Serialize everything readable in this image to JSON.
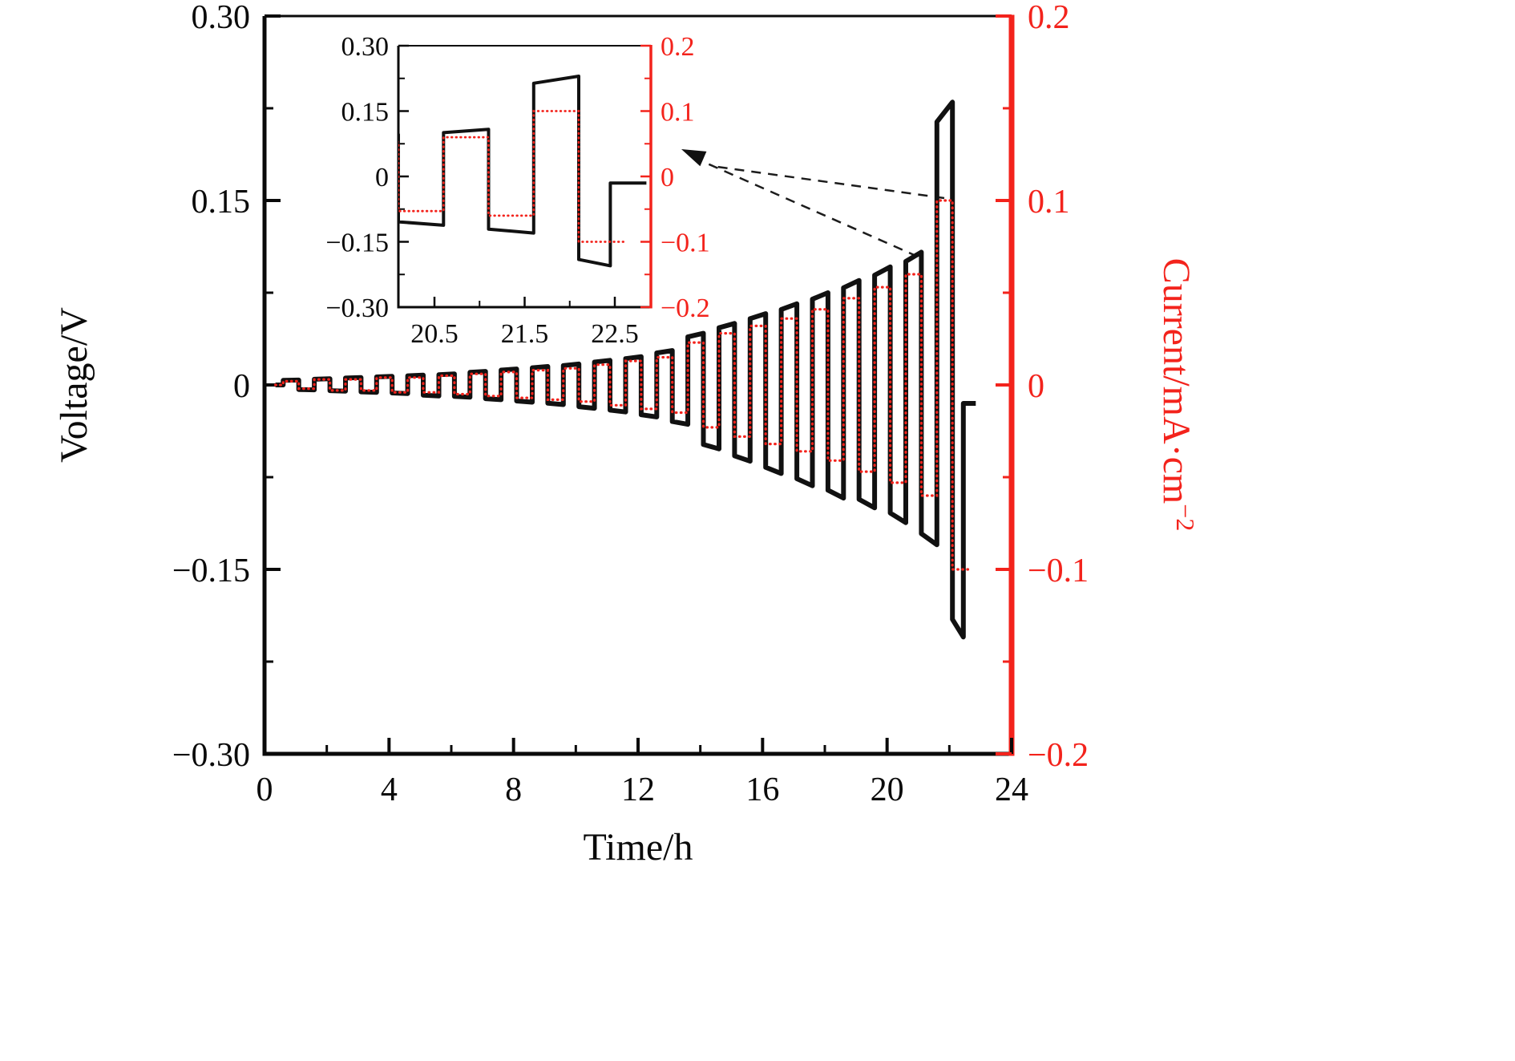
{
  "figure": {
    "xlabel": "Time/h",
    "ylabel_left": "Voltage/V",
    "ylabel_right": {
      "text": "Current/mA·cm",
      "sup": "−2"
    }
  },
  "chart_data": {
    "type": "line",
    "title": "",
    "xlabel": "Time/h",
    "ylabel_left": "Voltage/V",
    "ylabel_right": "Current/mA·cm⁻²",
    "legend": "none",
    "grid": false,
    "axes": {
      "x": {
        "range": [
          0,
          24
        ],
        "ticks": [
          {
            "v": 0,
            "label": "0"
          },
          {
            "v": 4,
            "label": "4"
          },
          {
            "v": 8,
            "label": "8"
          },
          {
            "v": 12,
            "label": "12"
          },
          {
            "v": 16,
            "label": "16"
          },
          {
            "v": 20,
            "label": "20"
          },
          {
            "v": 24,
            "label": "24"
          }
        ],
        "minor": [
          2,
          6,
          10,
          14,
          18,
          22
        ]
      },
      "y_left": {
        "range": [
          -0.3,
          0.3
        ],
        "ticks": [
          {
            "v": 0.3,
            "label": "0.30"
          },
          {
            "v": 0.15,
            "label": "0.15"
          },
          {
            "v": 0,
            "label": "0"
          },
          {
            "v": -0.15,
            "label": "−0.15"
          },
          {
            "v": -0.3,
            "label": "−0.30"
          }
        ],
        "minor": [
          -0.225,
          -0.075,
          0.075,
          0.225
        ]
      },
      "y_right": {
        "range": [
          -0.2,
          0.2
        ],
        "ticks": [
          {
            "v": 0.2,
            "label": "0.2"
          },
          {
            "v": 0.1,
            "label": "0.1"
          },
          {
            "v": 0,
            "label": "0"
          },
          {
            "v": -0.1,
            "label": "−0.1"
          },
          {
            "v": -0.2,
            "label": "−0.2"
          }
        ],
        "minor": [
          -0.15,
          -0.05,
          0.05,
          0.15
        ]
      }
    },
    "series": [
      {
        "name": "Voltage",
        "axis": "left",
        "style": "solid",
        "color": "#111111"
      },
      {
        "name": "Current",
        "axis": "right",
        "style": "dotted",
        "color": "#f3231c"
      }
    ],
    "waveform": {
      "description": "Stepped galvanostatic cycling: each 1 h cycle = 0.5 h positive current then 0.5 h negative current; per-cycle current amplitude i (mA·cm⁻²) and voltage plateau amplitudes vp/vn (V).",
      "lead_in_h": 0.35,
      "start_h": 0.6,
      "half_period_h": 0.5,
      "ramp_start_fraction": 0.93,
      "last_neg_half_h": 0.35,
      "current_neg_end_h": 22.6,
      "rest": {
        "v": -0.015,
        "end_h": 22.85
      },
      "cycles": [
        {
          "i": 0.002,
          "vp": 0.004,
          "vn": 0.004
        },
        {
          "i": 0.003,
          "vp": 0.005,
          "vn": 0.005
        },
        {
          "i": 0.003,
          "vp": 0.006,
          "vn": 0.006
        },
        {
          "i": 0.004,
          "vp": 0.007,
          "vn": 0.007
        },
        {
          "i": 0.004,
          "vp": 0.008,
          "vn": 0.009
        },
        {
          "i": 0.005,
          "vp": 0.009,
          "vn": 0.01
        },
        {
          "i": 0.006,
          "vp": 0.011,
          "vn": 0.012
        },
        {
          "i": 0.007,
          "vp": 0.013,
          "vn": 0.014
        },
        {
          "i": 0.008,
          "vp": 0.015,
          "vn": 0.016
        },
        {
          "i": 0.009,
          "vp": 0.017,
          "vn": 0.019
        },
        {
          "i": 0.011,
          "vp": 0.02,
          "vn": 0.022
        },
        {
          "i": 0.013,
          "vp": 0.023,
          "vn": 0.026
        },
        {
          "i": 0.015,
          "vp": 0.028,
          "vn": 0.032
        },
        {
          "i": 0.023,
          "vp": 0.042,
          "vn": 0.052
        },
        {
          "i": 0.028,
          "vp": 0.05,
          "vn": 0.062
        },
        {
          "i": 0.032,
          "vp": 0.058,
          "vn": 0.072
        },
        {
          "i": 0.036,
          "vp": 0.066,
          "vn": 0.082
        },
        {
          "i": 0.041,
          "vp": 0.075,
          "vn": 0.092
        },
        {
          "i": 0.047,
          "vp": 0.085,
          "vn": 0.1
        },
        {
          "i": 0.053,
          "vp": 0.096,
          "vn": 0.112
        },
        {
          "i": 0.06,
          "vp": 0.108,
          "vn": 0.13
        },
        {
          "i": 0.1,
          "vp": 0.23,
          "vn": 0.205
        }
      ]
    },
    "inset": {
      "x_range": [
        20.1,
        22.9
      ],
      "x_ticks": [
        {
          "v": 20.5,
          "label": "20.5"
        },
        {
          "v": 21.5,
          "label": "21.5"
        },
        {
          "v": 22.5,
          "label": "22.5"
        }
      ],
      "x_minor": [
        21,
        22
      ],
      "y_left_ticks": [
        {
          "v": 0.3,
          "label": "0.30"
        },
        {
          "v": 0.15,
          "label": "0.15"
        },
        {
          "v": 0,
          "label": "0"
        },
        {
          "v": -0.15,
          "label": "−0.15"
        },
        {
          "v": -0.3,
          "label": "−0.30"
        }
      ],
      "y_left_minor": [
        -0.225,
        -0.075,
        0.075,
        0.225
      ],
      "y_right_ticks": [
        {
          "v": 0.2,
          "label": "0.2"
        },
        {
          "v": 0.1,
          "label": "0.1"
        },
        {
          "v": 0,
          "label": "0"
        },
        {
          "v": -0.1,
          "label": "−0.1"
        },
        {
          "v": -0.2,
          "label": "−0.2"
        }
      ],
      "y_right_minor": [
        -0.15,
        -0.05,
        0.05,
        0.15
      ]
    },
    "colors": {
      "voltage": "#111111",
      "current": "#f3231c",
      "axis": "#0a0a0a"
    }
  }
}
